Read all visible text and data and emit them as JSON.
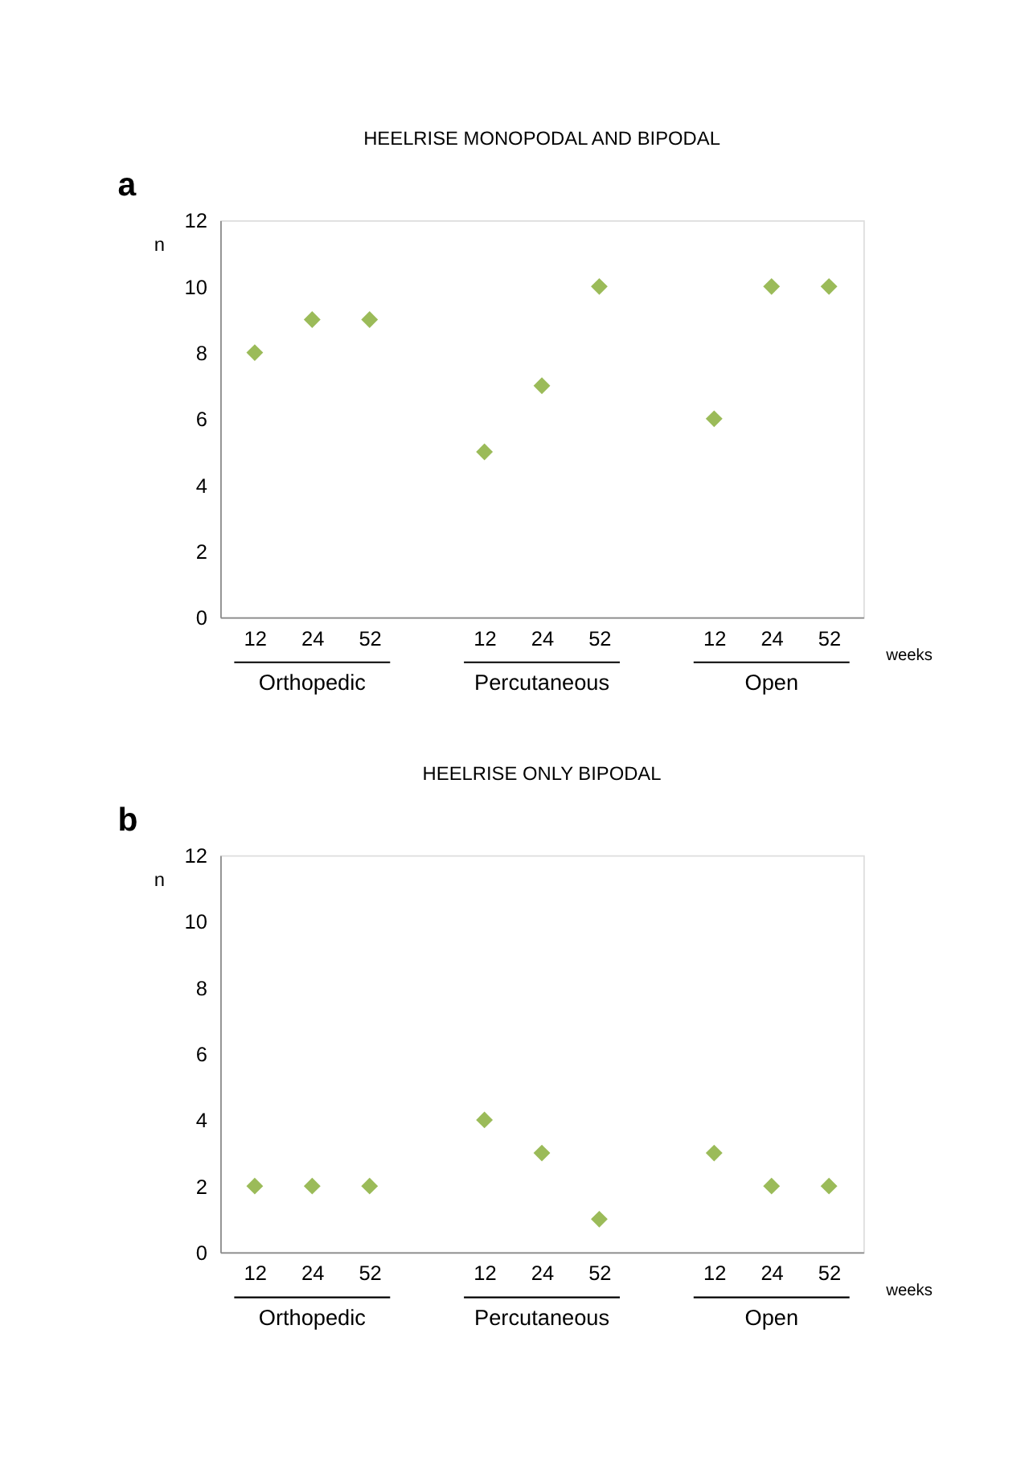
{
  "chart_data": [
    {
      "type": "scatter",
      "title": "HEELRISE MONOPODAL AND BIPODAL",
      "ylabel": "n",
      "xlabel": "weeks",
      "categories": [
        "12",
        "24",
        "52",
        null,
        "12",
        "24",
        "52",
        null,
        "12",
        "24",
        "52"
      ],
      "values": [
        8,
        9,
        9,
        null,
        5,
        7,
        10,
        null,
        6,
        10,
        10
      ],
      "color": "#9bbb59",
      "marker": "diamond",
      "ylim": [
        0,
        12
      ],
      "yticks": [
        0,
        2,
        4,
        6,
        8,
        10,
        12
      ],
      "grid": false,
      "annotations": [
        "a",
        "Orthopedic",
        "Percutaneous",
        "Open"
      ]
    },
    {
      "type": "scatter",
      "title": "HEELRISE ONLY BIPODAL",
      "ylabel": "n",
      "xlabel": "weeks",
      "categories": [
        "12",
        "24",
        "52",
        null,
        "12",
        "24",
        "52",
        null,
        "12",
        "24",
        "52"
      ],
      "values": [
        2,
        2,
        2,
        null,
        4,
        3,
        1,
        null,
        3,
        2,
        2
      ],
      "color": "#9bbb59",
      "marker": "diamond",
      "ylim": [
        0,
        12
      ],
      "yticks": [
        0,
        2,
        4,
        6,
        8,
        10,
        12
      ],
      "grid": false,
      "annotations": [
        "b",
        "Orthopedic",
        "Percutaneous",
        "Open"
      ]
    }
  ]
}
